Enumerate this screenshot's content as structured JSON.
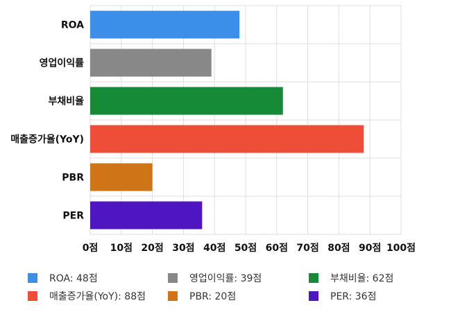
{
  "chart_data": {
    "type": "bar",
    "orientation": "horizontal",
    "categories": [
      "ROA",
      "영업이익률",
      "부채비율",
      "매출증가율(YoY)",
      "PBR",
      "PER"
    ],
    "values": [
      48,
      39,
      62,
      88,
      20,
      36
    ],
    "colors": [
      "#3b8fe8",
      "#888888",
      "#168a37",
      "#ee4e37",
      "#cf7417",
      "#4e16c0"
    ],
    "x_ticks": [
      "0점",
      "10점",
      "20점",
      "30점",
      "40점",
      "50점",
      "60점",
      "70점",
      "80점",
      "90점",
      "100점"
    ],
    "xlim": [
      0,
      100
    ],
    "grid": true,
    "legend_position": "bottom",
    "legend": [
      {
        "label": "ROA: 48점",
        "color": "#3b8fe8"
      },
      {
        "label": "영업이익률: 39점",
        "color": "#888888"
      },
      {
        "label": "부채비율: 62점",
        "color": "#168a37"
      },
      {
        "label": "매출증가율(YoY): 88점",
        "color": "#ee4e37"
      },
      {
        "label": "PBR: 20점",
        "color": "#cf7417"
      },
      {
        "label": "PER: 36점",
        "color": "#4e16c0"
      }
    ]
  }
}
